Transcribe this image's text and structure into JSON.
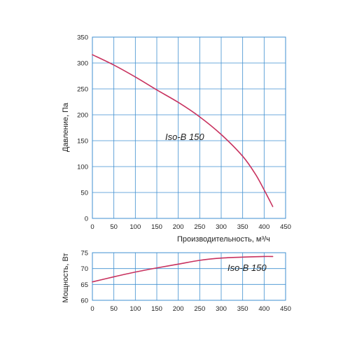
{
  "chart_data": [
    {
      "type": "line",
      "title": "",
      "xlabel": "Производительность, м³/ч",
      "ylabel": "Давление, Па",
      "xlim": [
        0,
        450
      ],
      "ylim": [
        0,
        350
      ],
      "x_ticks": [
        "0",
        "50",
        "100",
        "150",
        "200",
        "250",
        "300",
        "350",
        "400",
        "450"
      ],
      "y_ticks": [
        "0",
        "50",
        "100",
        "150",
        "200",
        "250",
        "300",
        "350"
      ],
      "grid": true,
      "annotation": "Iso-B 150",
      "series": [
        {
          "color": "#c8325f",
          "x": [
            0,
            50,
            100,
            150,
            200,
            250,
            300,
            350,
            380,
            400,
            420
          ],
          "y": [
            316,
            296,
            273,
            248,
            224,
            196,
            162,
            120,
            85,
            55,
            23
          ]
        }
      ]
    },
    {
      "type": "line",
      "title": "",
      "xlabel": "",
      "ylabel": "Мощность, Вт",
      "xlim": [
        0,
        450
      ],
      "ylim": [
        60,
        75
      ],
      "x_ticks": [
        "0",
        "50",
        "100",
        "150",
        "200",
        "250",
        "300",
        "350",
        "400",
        "450"
      ],
      "y_ticks": [
        "60",
        "65",
        "70",
        "75"
      ],
      "grid": true,
      "annotation": "Iso-B 150",
      "series": [
        {
          "color": "#c8325f",
          "x": [
            0,
            50,
            100,
            150,
            200,
            250,
            300,
            350,
            400,
            420
          ],
          "y": [
            65.8,
            67.4,
            68.9,
            70.2,
            71.4,
            72.6,
            73.3,
            73.6,
            73.8,
            73.8
          ]
        }
      ]
    }
  ]
}
